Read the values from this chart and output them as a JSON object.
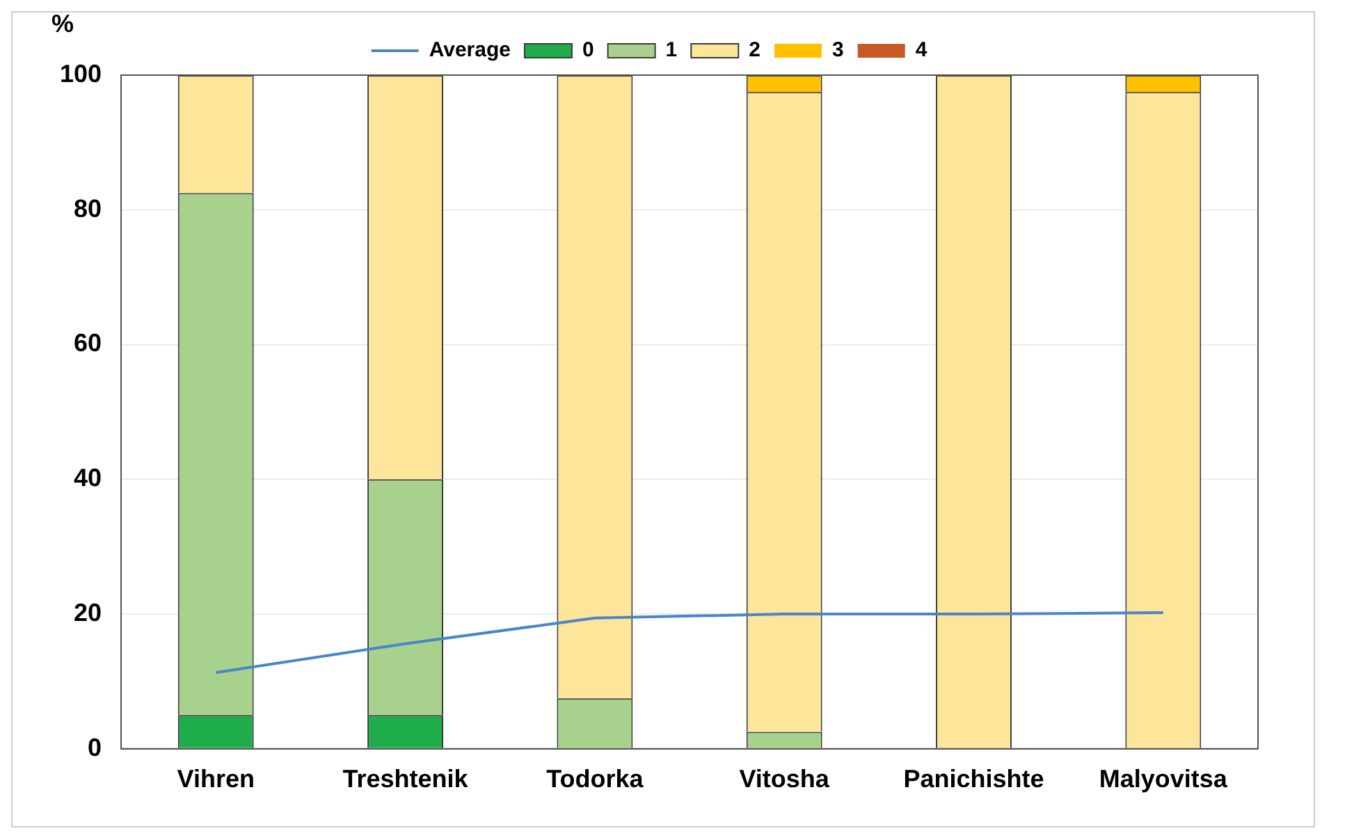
{
  "chart_data": {
    "type": "bar",
    "stacked": true,
    "ylabel": "%",
    "categories": [
      "Vihren",
      "Treshtenik",
      "Todorka",
      "Vitosha",
      "Panichishte",
      "Malyovitsa"
    ],
    "series": [
      {
        "name": "0",
        "color": "#1fad4b",
        "values": [
          5,
          5,
          0,
          0,
          0,
          0
        ]
      },
      {
        "name": "1",
        "color": "#a9d18e",
        "values": [
          77.5,
          35,
          7.5,
          2.5,
          0,
          0
        ]
      },
      {
        "name": "2",
        "color": "#fde59a",
        "values": [
          17.5,
          60,
          92.5,
          95,
          100,
          97.5
        ]
      },
      {
        "name": "3",
        "color": "#ffc000",
        "values": [
          0,
          0,
          0,
          2.5,
          0,
          2.5
        ]
      },
      {
        "name": "4",
        "color": "#c55a24",
        "values": [
          0,
          0,
          0,
          0,
          0,
          0
        ]
      },
      {
        "name": "Average",
        "type": "line",
        "color": "#4a86c8",
        "marker": "none",
        "values": [
          11.3,
          15.6,
          19.4,
          20,
          20,
          20.2
        ]
      }
    ],
    "ylim": [
      0,
      100
    ],
    "yticks": [
      0,
      20,
      40,
      60,
      80,
      100
    ],
    "grid": "y",
    "legend": "top"
  }
}
